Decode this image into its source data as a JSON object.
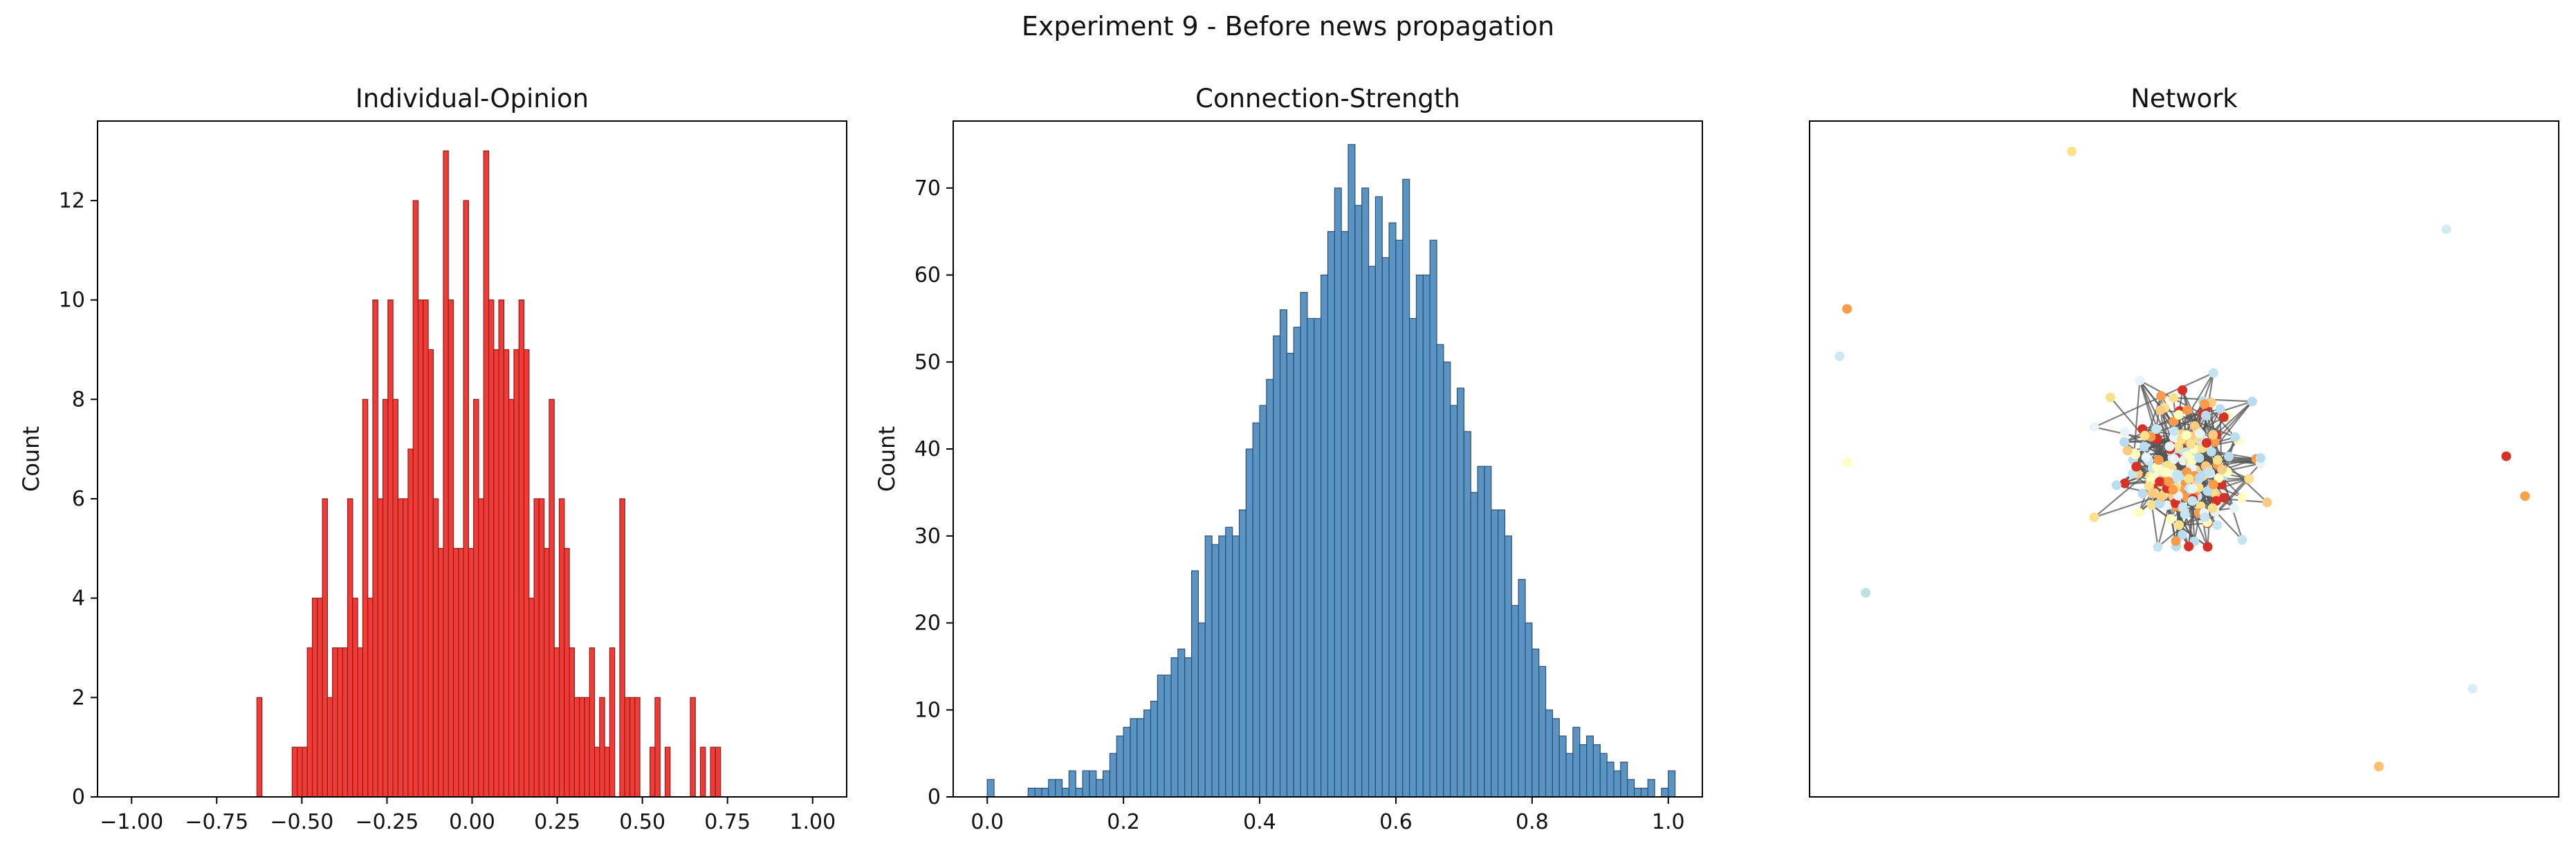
{
  "figure": {
    "title": "Experiment 9 - Before news propagation"
  },
  "chart_data": [
    {
      "type": "bar",
      "title": "Individual-Opinion",
      "xlabel": "",
      "ylabel": "Count",
      "xlim": [
        -1.1,
        1.1
      ],
      "ylim": [
        0,
        13.6
      ],
      "xticks": [
        -1.0,
        -0.75,
        -0.5,
        -0.25,
        0.0,
        0.25,
        0.5,
        0.75,
        1.0
      ],
      "xtick_labels": [
        "−1.00",
        "−0.75",
        "−0.50",
        "−0.25",
        "0.00",
        "0.25",
        "0.50",
        "0.75",
        "1.00"
      ],
      "yticks": [
        0,
        2,
        4,
        6,
        8,
        10,
        12
      ],
      "ytick_labels": [
        "0",
        "2",
        "4",
        "6",
        "8",
        "10",
        "12"
      ],
      "bin_start": -0.632,
      "bin_width": 0.0148,
      "values": [
        2,
        0,
        0,
        0,
        0,
        0,
        0,
        1,
        1,
        1,
        3,
        4,
        4,
        6,
        2,
        3,
        3,
        3,
        6,
        4,
        3,
        8,
        4,
        10,
        6,
        8,
        10,
        8,
        6,
        6,
        7,
        12,
        10,
        10,
        9,
        6,
        5,
        13,
        10,
        5,
        5,
        12,
        5,
        8,
        6,
        13,
        10,
        9,
        10,
        9,
        8,
        9,
        10,
        9,
        4,
        6,
        6,
        5,
        8,
        3,
        6,
        5,
        3,
        2,
        2,
        2,
        3,
        1,
        2,
        1,
        3,
        0,
        6,
        2,
        2,
        2,
        0,
        0,
        1,
        2,
        0,
        1,
        0,
        0,
        0,
        0,
        2,
        0,
        1,
        0,
        1,
        1
      ],
      "bar_color": "#f03b36",
      "edge_color": "#8f1f1c",
      "grid": false
    },
    {
      "type": "bar",
      "title": "Connection-Strength",
      "xlabel": "",
      "ylabel": "Count",
      "xlim": [
        -0.05,
        1.05
      ],
      "ylim": [
        0,
        77.7
      ],
      "xticks": [
        0.0,
        0.2,
        0.4,
        0.6,
        0.8,
        1.0
      ],
      "xtick_labels": [
        "0.0",
        "0.2",
        "0.4",
        "0.6",
        "0.8",
        "1.0"
      ],
      "yticks": [
        0,
        10,
        20,
        30,
        40,
        50,
        60,
        70
      ],
      "ytick_labels": [
        "0",
        "10",
        "20",
        "30",
        "40",
        "50",
        "60",
        "70"
      ],
      "bin_start": 0.0,
      "bin_width": 0.01,
      "values": [
        2,
        0,
        0,
        0,
        0,
        0,
        1,
        1,
        1,
        2,
        2,
        1,
        3,
        1,
        3,
        3,
        2,
        3,
        5,
        7,
        8,
        9,
        9,
        10,
        11,
        14,
        14,
        16,
        17,
        16,
        26,
        20,
        30,
        29,
        30,
        31,
        30,
        33,
        40,
        43,
        45,
        48,
        53,
        56,
        51,
        54,
        58,
        55,
        55,
        60,
        65,
        70,
        65,
        75,
        68,
        70,
        61,
        69,
        62,
        66,
        64,
        71,
        55,
        60,
        60,
        64,
        52,
        50,
        45,
        47,
        42,
        35,
        38,
        38,
        33,
        33,
        30,
        22,
        25,
        20,
        17,
        15,
        10,
        9,
        7,
        5,
        8,
        6,
        7,
        6,
        5,
        4,
        3,
        4,
        2,
        1,
        1,
        2,
        0,
        1,
        3
      ],
      "bar_color": "#5994c5",
      "edge_color": "#2f4f6f",
      "grid": false
    },
    {
      "type": "scatter",
      "title": "Network",
      "xlabel": "",
      "ylabel": "",
      "xlim": [
        0,
        1
      ],
      "ylim": [
        0,
        1
      ],
      "axes_visible": false,
      "node_colors": [
        "#fde08b",
        "#f99b4a",
        "#d73027",
        "#b9dcee",
        "#e8f4f8",
        "#ffffbf",
        "#fec980",
        "#c5e5f0"
      ],
      "edge_color": "#555555",
      "outliers": [
        {
          "x": 0.35,
          "y": 0.955,
          "color": "#fde08b"
        },
        {
          "x": 0.05,
          "y": 0.722,
          "color": "#f99b4a"
        },
        {
          "x": 0.04,
          "y": 0.652,
          "color": "#cde8f2"
        },
        {
          "x": 0.85,
          "y": 0.84,
          "color": "#d4ebf4"
        },
        {
          "x": 0.05,
          "y": 0.495,
          "color": "#ffffbf"
        },
        {
          "x": 0.075,
          "y": 0.302,
          "color": "#bde0e0"
        },
        {
          "x": 0.93,
          "y": 0.504,
          "color": "#d73027"
        },
        {
          "x": 0.955,
          "y": 0.445,
          "color": "#f7a24a"
        },
        {
          "x": 0.885,
          "y": 0.16,
          "color": "#d9edf5"
        },
        {
          "x": 0.76,
          "y": 0.045,
          "color": "#fdbe6e"
        }
      ],
      "cluster": {
        "x": 0.5,
        "y": 0.49,
        "spread_x": 0.07,
        "spread_y": 0.11,
        "node_count": 220
      }
    }
  ]
}
